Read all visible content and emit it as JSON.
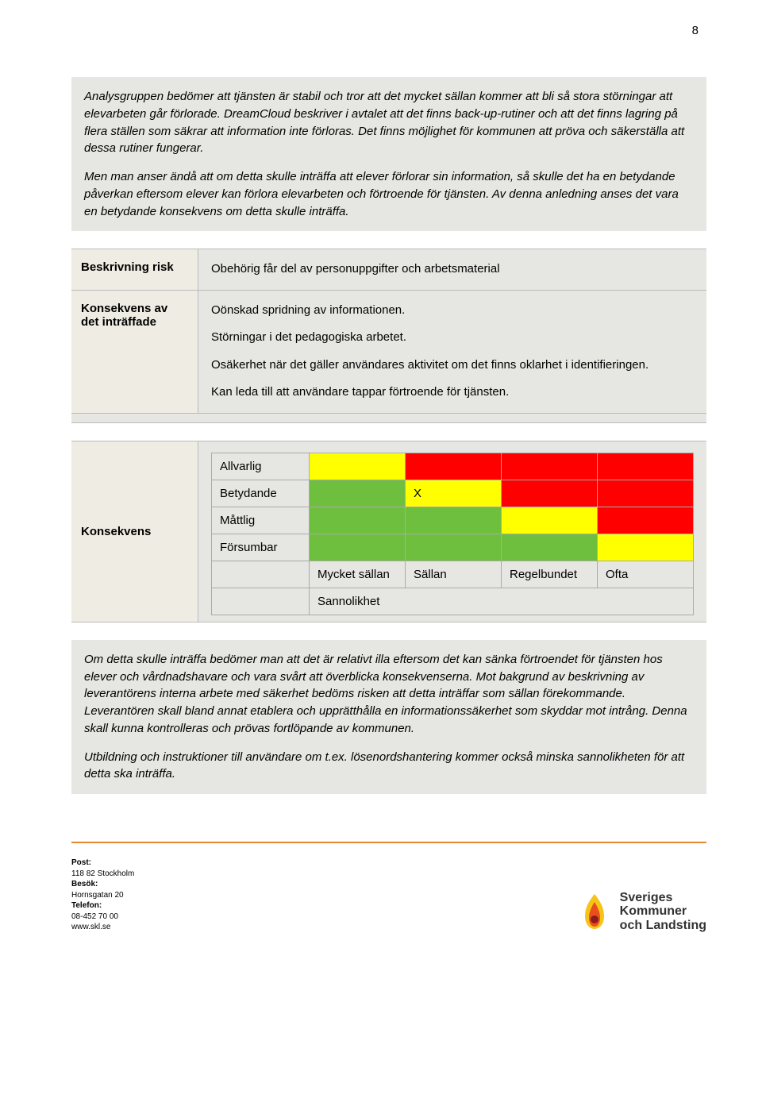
{
  "page_number": "8",
  "intro": {
    "p1": "Analysgruppen bedömer att tjänsten är stabil och tror att det mycket sällan kommer att bli så stora störningar att elevarbeten går förlorade. DreamCloud beskriver i avtalet att det finns back-up-rutiner och att det finns lagring på flera ställen som säkrar att information inte förloras. Det finns möjlighet för kommunen att pröva och säkerställa att dessa rutiner fungerar.",
    "p2": "Men man anser ändå att om detta skulle inträffa att elever förlorar sin information, så skulle det ha en betydande påverkan eftersom elever kan förlora elevarbeten och förtroende för tjänsten. Av denna anledning anses det vara en betydande konsekvens om detta skulle inträffa."
  },
  "risk_table": {
    "row1_label": "Beskrivning risk",
    "row1_text": "Obehörig får del av personuppgifter och arbetsmaterial",
    "row2_label": "Konsekvens av det inträffade",
    "row2_p1": "Oönskad spridning av informationen.",
    "row2_p2": "Störningar i det pedagogiska arbetet.",
    "row2_p3": "Osäkerhet när det gäller användares aktivitet om det finns oklarhet i identifieringen.",
    "row2_p4": "Kan leda till att användare tappar förtroende för tjänsten."
  },
  "matrix": {
    "side_label": "Konsekvens",
    "rows": [
      "Allvarlig",
      "Betydande",
      "Måttlig",
      "Försumbar"
    ],
    "cols": [
      "Mycket sällan",
      "Sällan",
      "Regelbundet",
      "Ofta"
    ],
    "prob_label": "Sannolikhet",
    "x_mark": "X",
    "colors": {
      "green": "#6fbf3f",
      "yellow": "#ffff00",
      "red": "#ff0000",
      "bg": "#e6e6e3"
    },
    "cells": [
      [
        "yellow",
        "red",
        "red",
        "red"
      ],
      [
        "green",
        "yellow",
        "red",
        "red"
      ],
      [
        "green",
        "green",
        "yellow",
        "red"
      ],
      [
        "green",
        "green",
        "green",
        "yellow"
      ]
    ],
    "mark_cell": [
      1,
      1
    ]
  },
  "conclusion": {
    "p1": "Om detta skulle inträffa bedömer man att det är relativt illa eftersom det kan sänka förtroendet för tjänsten hos elever och vårdnadshavare och vara svårt att överblicka konsekvenserna. Mot bakgrund av beskrivning av leverantörens interna arbete med säkerhet bedöms risken att detta inträffar som sällan förekommande. Leverantören skall bland annat etablera och upprätthålla en informationssäkerhet som skyddar mot intrång. Denna skall kunna kontrolleras och prövas fortlöpande av kommunen.",
    "p2": "Utbildning och instruktioner till användare om t.ex. lösenordshantering kommer också minska sannolikheten för att detta ska inträffa."
  },
  "footer": {
    "post_label": "Post:",
    "post": "118 82 Stockholm",
    "besok_label": "Besök:",
    "besok": "Hornsgatan 20",
    "telefon_label": "Telefon:",
    "telefon": "08-452 70 00",
    "url": "www.skl.se",
    "logo_line1": "Sveriges",
    "logo_line2": "Kommuner",
    "logo_line3": "och Landsting"
  }
}
